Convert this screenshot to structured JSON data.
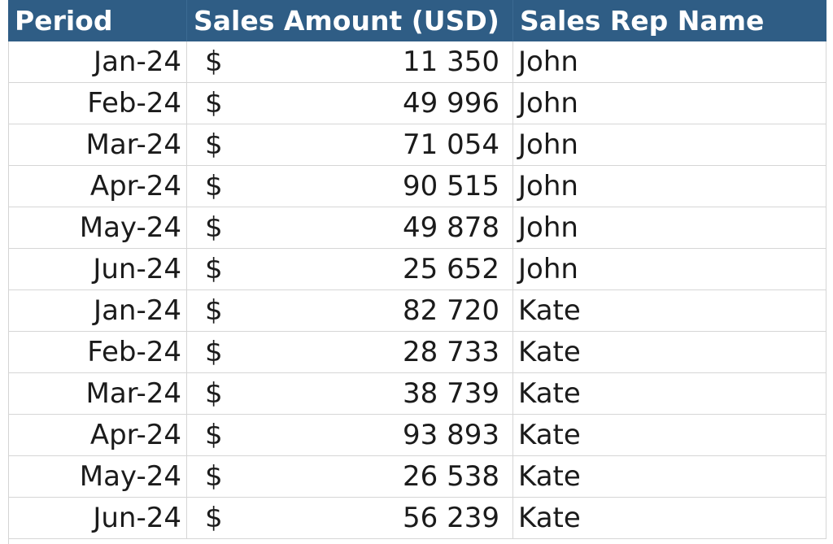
{
  "headers": {
    "period": "Period",
    "sales_amount": "Sales Amount (USD)",
    "sales_rep": "Sales Rep Name"
  },
  "currency_symbol": "$",
  "colors": {
    "header_background": "#2f5d85",
    "header_text": "#ffffff",
    "gridline": "#d6d6d6"
  },
  "rows": [
    {
      "period": "Jan-24",
      "amount": "11 350",
      "rep": "John"
    },
    {
      "period": "Feb-24",
      "amount": "49 996",
      "rep": "John"
    },
    {
      "period": "Mar-24",
      "amount": "71 054",
      "rep": "John"
    },
    {
      "period": "Apr-24",
      "amount": "90 515",
      "rep": "John"
    },
    {
      "period": "May-24",
      "amount": "49 878",
      "rep": "John"
    },
    {
      "period": "Jun-24",
      "amount": "25 652",
      "rep": "John"
    },
    {
      "period": "Jan-24",
      "amount": "82 720",
      "rep": "Kate"
    },
    {
      "period": "Feb-24",
      "amount": "28 733",
      "rep": "Kate"
    },
    {
      "period": "Mar-24",
      "amount": "38 739",
      "rep": "Kate"
    },
    {
      "period": "Apr-24",
      "amount": "93 893",
      "rep": "Kate"
    },
    {
      "period": "May-24",
      "amount": "26 538",
      "rep": "Kate"
    },
    {
      "period": "Jun-24",
      "amount": "56 239",
      "rep": "Kate"
    }
  ]
}
